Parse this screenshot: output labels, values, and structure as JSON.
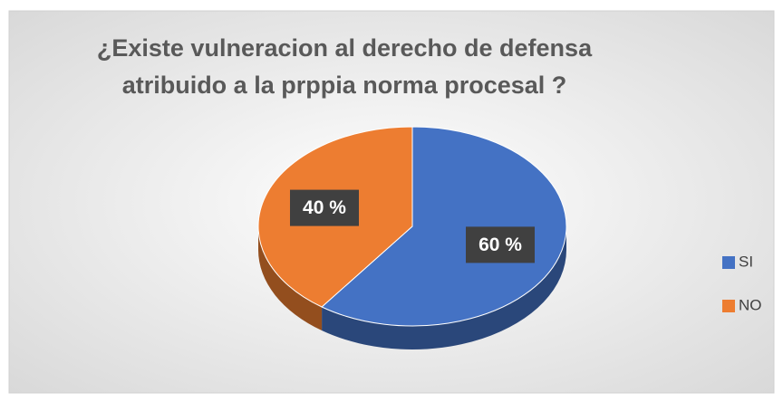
{
  "chart_data": {
    "type": "pie",
    "title": "¿Existe vulneracion al derecho de defensa atribuido a la prppia norma procesal ?",
    "title_lines": [
      "¿Existe vulneracion al derecho de defensa",
      "atribuido a la prppia norma procesal ?"
    ],
    "categories": [
      "SI",
      "NO"
    ],
    "values": [
      60,
      40
    ],
    "value_labels": [
      "60 %",
      "40 %"
    ],
    "colors": [
      "#4472c4",
      "#ed7d31"
    ],
    "legend": "right"
  }
}
